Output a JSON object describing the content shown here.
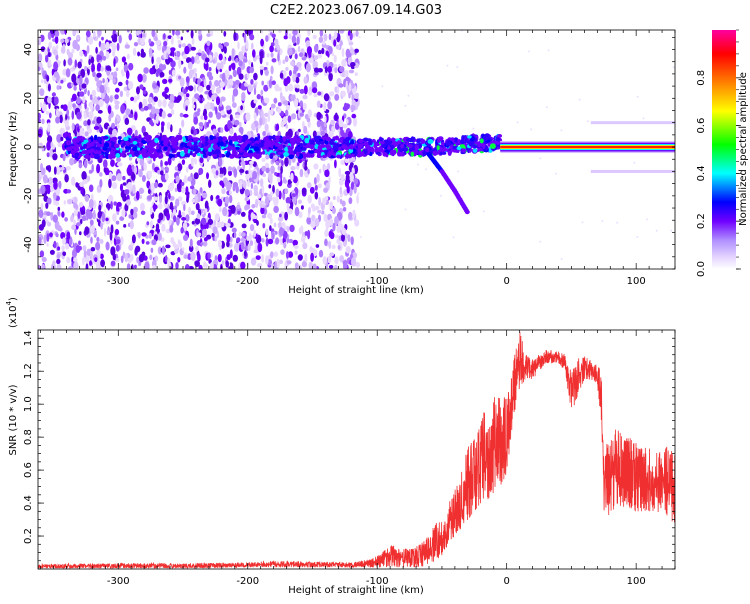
{
  "title": "C2E2.2023.067.09.14.G03",
  "chart_data": [
    {
      "type": "heatmap",
      "title": "C2E2.2023.067.09.14.G03",
      "xlabel": "Height of straight line (km)",
      "ylabel": "Frequency (Hz)",
      "xlim": [
        -362,
        130
      ],
      "ylim": [
        -50,
        48
      ],
      "x_ticks": [
        "-300",
        "-200",
        "-100",
        "0",
        "100"
      ],
      "y_ticks": [
        "-40",
        "-20",
        "0",
        "20",
        "40"
      ],
      "colorbar": {
        "label": "Normalized spectral amplitude",
        "range": [
          0,
          1
        ],
        "ticks": [
          "0.0",
          "0.2",
          "0.4",
          "0.6",
          "0.8"
        ],
        "colors": [
          "#ffffff",
          "#d8c0ff",
          "#7000ff",
          "#0000ff",
          "#00ffff",
          "#00ff00",
          "#ffff00",
          "#ff8000",
          "#ff0000",
          "#ff00a0"
        ]
      },
      "features": {
        "scatter_noise_x_range": [
          -362,
          -115
        ],
        "central_band_frequency": 0,
        "central_band_x_range": [
          -340,
          130
        ],
        "strong_line_x_range": [
          -5,
          130
        ],
        "descending_branch": {
          "x": [
            -60,
            -50,
            -40,
            -30
          ],
          "y": [
            -3,
            -10,
            -18,
            -27
          ]
        },
        "sidebands": [
          {
            "frequency": 10,
            "x_range": [
              65,
              130
            ]
          },
          {
            "frequency": -10,
            "x_range": [
              65,
              130
            ]
          }
        ]
      },
      "grid": false,
      "legend": "none"
    },
    {
      "type": "line",
      "xlabel": "Height of straight line (km)",
      "ylabel": "SNR (10 * v/v)",
      "y_scale_label": "(x10^4)",
      "xlim": [
        -362,
        130
      ],
      "ylim": [
        0,
        1.45
      ],
      "x_ticks": [
        "-300",
        "-200",
        "-100",
        "0",
        "100"
      ],
      "y_ticks": [
        "0.2",
        "0.4",
        "0.6",
        "0.8",
        "1.0",
        "1.2",
        "1.4"
      ],
      "series": [
        {
          "color": "#f03030",
          "envelope": {
            "x": [
              -362,
              -300,
              -250,
              -200,
              -180,
              -150,
              -120,
              -105,
              -100,
              -90,
              -80,
              -70,
              -60,
              -55,
              -50,
              -45,
              -40,
              -35,
              -30,
              -25,
              -20,
              -15,
              -10,
              -5,
              0,
              5,
              10,
              15,
              20,
              25,
              30,
              35,
              40,
              45,
              50,
              55,
              60,
              65,
              70,
              73,
              75,
              78,
              85,
              95,
              105,
              115,
              125,
              130
            ],
            "low": [
              0.005,
              0.005,
              0.005,
              0.01,
              0.01,
              0.01,
              0.01,
              0.01,
              0.01,
              0.01,
              0.01,
              0.01,
              0.02,
              0.05,
              0.08,
              0.15,
              0.2,
              0.25,
              0.3,
              0.35,
              0.4,
              0.42,
              0.45,
              0.5,
              0.55,
              0.9,
              1.1,
              1.15,
              1.15,
              1.2,
              1.25,
              1.25,
              1.25,
              1.2,
              0.95,
              1.05,
              1.15,
              1.15,
              1.12,
              0.9,
              0.35,
              0.32,
              0.38,
              0.35,
              0.35,
              0.35,
              0.32,
              0.25
            ],
            "high": [
              0.03,
              0.035,
              0.035,
              0.04,
              0.05,
              0.045,
              0.04,
              0.06,
              0.08,
              0.15,
              0.12,
              0.14,
              0.2,
              0.28,
              0.3,
              0.4,
              0.48,
              0.6,
              0.75,
              0.85,
              0.95,
              1.0,
              1.05,
              1.08,
              1.1,
              1.25,
              1.45,
              1.3,
              1.28,
              1.3,
              1.33,
              1.33,
              1.32,
              1.3,
              1.2,
              1.28,
              1.3,
              1.26,
              1.24,
              1.2,
              0.75,
              0.82,
              0.85,
              0.8,
              0.75,
              0.75,
              0.75,
              0.7
            ]
          }
        }
      ],
      "grid": false,
      "legend": "none"
    }
  ]
}
